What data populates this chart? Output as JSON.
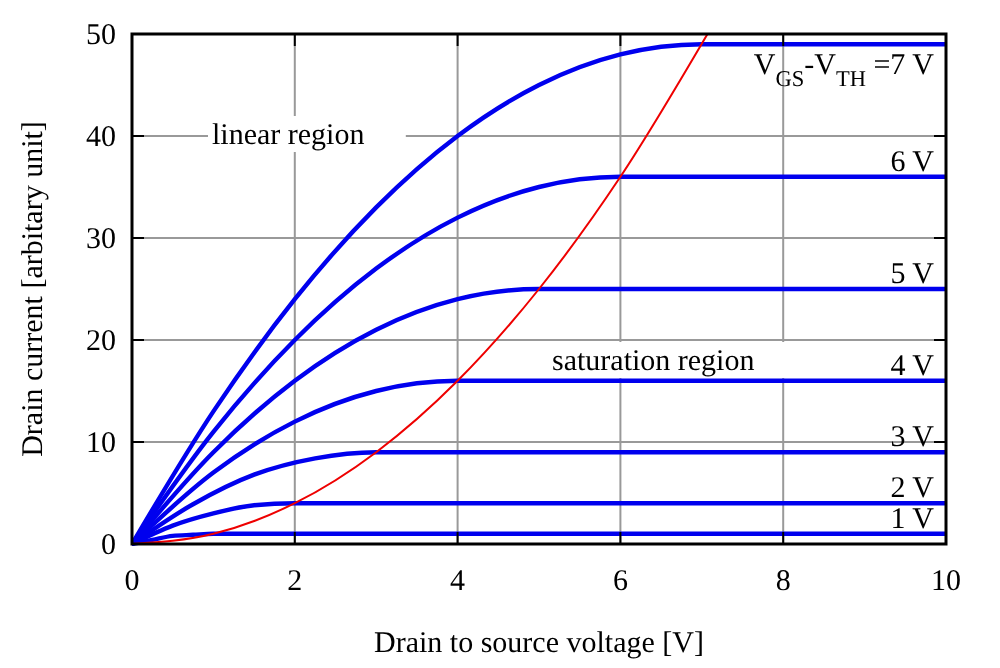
{
  "chart_data": {
    "type": "line",
    "xlabel": "Drain to source voltage [V]",
    "ylabel": "Drain current [arbitary unit]",
    "xlim": [
      0,
      10
    ],
    "ylim": [
      0,
      50
    ],
    "xticks": [
      0,
      2,
      4,
      6,
      8,
      10
    ],
    "yticks": [
      0,
      10,
      20,
      30,
      40,
      50
    ],
    "grid": true,
    "line_style": "solid",
    "annotations": [
      "linear region",
      "saturation region"
    ],
    "series": [
      {
        "name": "V$_{GS}$-V$_{TH}$ =7 V",
        "color": "#0000ee",
        "x": [
          0,
          1,
          2,
          3,
          4,
          5,
          6,
          7,
          10
        ],
        "values": [
          0,
          13,
          24,
          33,
          40,
          45,
          48,
          49,
          49
        ]
      },
      {
        "name": "6 V",
        "color": "#0000ee",
        "x": [
          0,
          1,
          2,
          3,
          4,
          5,
          6,
          10
        ],
        "values": [
          0,
          11,
          20,
          27,
          32,
          35,
          36,
          36
        ]
      },
      {
        "name": "5 V",
        "color": "#0000ee",
        "x": [
          0,
          1,
          2,
          3,
          4,
          5,
          10
        ],
        "values": [
          0,
          9,
          16,
          21,
          24,
          25,
          25
        ]
      },
      {
        "name": "4 V",
        "color": "#0000ee",
        "x": [
          0,
          1,
          2,
          3,
          4,
          10
        ],
        "values": [
          0,
          7,
          12,
          15,
          16,
          16
        ]
      },
      {
        "name": "3 V",
        "color": "#0000ee",
        "x": [
          0,
          0.75,
          1.5,
          2.25,
          3,
          10
        ],
        "values": [
          0,
          3.9,
          6.8,
          8.4,
          9,
          9
        ]
      },
      {
        "name": "2 V",
        "color": "#0000ee",
        "x": [
          0,
          0.5,
          1,
          1.5,
          2,
          10
        ],
        "values": [
          0,
          1.8,
          3,
          3.8,
          4,
          4
        ]
      },
      {
        "name": "1 V",
        "color": "#0000ee",
        "x": [
          0,
          0.25,
          0.5,
          0.75,
          1,
          10
        ],
        "values": [
          0,
          0.4,
          0.8,
          0.9,
          1,
          1
        ]
      },
      {
        "color": "#ee0000",
        "x": [
          0,
          1,
          2,
          3,
          4,
          5,
          6,
          7.07
        ],
        "values": [
          0,
          1,
          4,
          9,
          16,
          25,
          36,
          50
        ]
      }
    ]
  }
}
